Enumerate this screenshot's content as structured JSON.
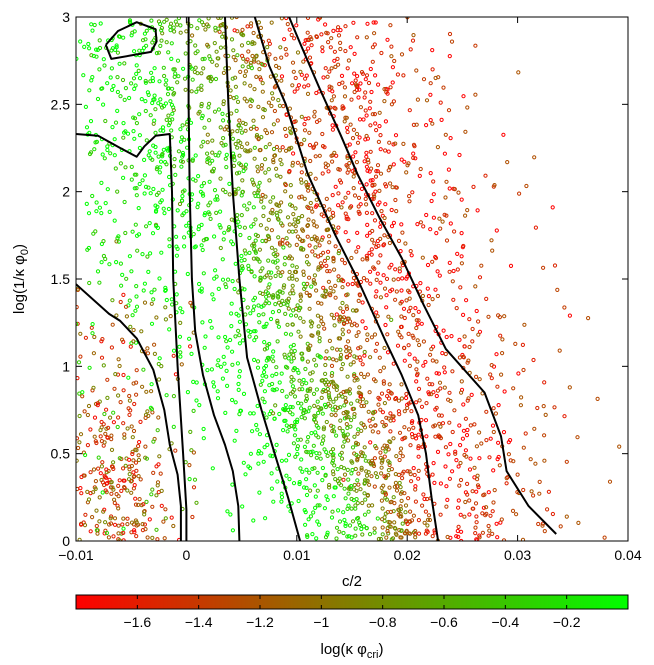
{
  "chart_data": {
    "type": "scatter",
    "title": "",
    "xlabel": "c/2",
    "ylabel_main": "log(1/κ φ",
    "ylabel_sub": "0",
    "ylabel_tail": ")",
    "xlim": [
      -0.01,
      0.04
    ],
    "ylim": [
      0,
      3
    ],
    "x_ticks": [
      -0.01,
      0,
      0.01,
      0.02,
      0.03,
      0.04
    ],
    "x_tick_labels": [
      "−0.01",
      "0",
      "0.01",
      "0.02",
      "0.03",
      "0.04"
    ],
    "y_ticks": [
      0,
      0.5,
      1,
      1.5,
      2,
      2.5,
      3
    ],
    "y_tick_labels": [
      "0",
      "0.5",
      "1",
      "1.5",
      "2",
      "2.5",
      "3"
    ],
    "grid": false,
    "colorbar": {
      "label_main": "log(κ φ",
      "label_sub": "cri",
      "label_tail": ")",
      "range": [
        -1.8,
        0
      ],
      "ticks": [
        -1.6,
        -1.4,
        -1.2,
        -1.0,
        -0.8,
        -0.6,
        -0.4,
        -0.2
      ],
      "tick_labels": [
        "−1.6",
        "−1.4",
        "−1.2",
        "−1",
        "−0.8",
        "−0.6",
        "−0.4",
        "−0.2"
      ],
      "color_low": "#ff0000",
      "color_high": "#00ff00"
    },
    "contours": [
      {
        "points": [
          [
            -0.0073,
            2.84
          ],
          [
            -0.0062,
            2.92
          ],
          [
            -0.0045,
            2.97
          ],
          [
            -0.0028,
            2.93
          ],
          [
            -0.0027,
            2.86
          ],
          [
            -0.0032,
            2.8
          ],
          [
            -0.005,
            2.78
          ],
          [
            -0.0068,
            2.76
          ],
          [
            -0.0073,
            2.84
          ]
        ]
      },
      {
        "points": [
          [
            -0.01,
            2.33
          ],
          [
            -0.008,
            2.32
          ],
          [
            -0.006,
            2.25
          ],
          [
            -0.0045,
            2.2
          ],
          [
            -0.0038,
            2.26
          ],
          [
            -0.0028,
            2.32
          ],
          [
            -0.0015,
            2.33
          ],
          [
            -0.0013,
            2.0
          ],
          [
            -0.0012,
            1.5
          ],
          [
            -0.0008,
            1.0
          ],
          [
            -0.0003,
            0.5
          ],
          [
            0,
            0.18
          ],
          [
            0,
            0
          ]
        ]
      },
      {
        "points": [
          [
            -0.01,
            1.47
          ],
          [
            -0.007,
            1.3
          ],
          [
            -0.006,
            1.26
          ],
          [
            -0.0045,
            1.16
          ],
          [
            -0.003,
            0.98
          ],
          [
            -0.002,
            0.75
          ],
          [
            -0.0015,
            0.55
          ],
          [
            -0.0008,
            0.38
          ],
          [
            -0.0005,
            0.2
          ],
          [
            -0.0005,
            0
          ]
        ]
      },
      {
        "points": [
          [
            0.0002,
            3
          ],
          [
            0.0002,
            2.5
          ],
          [
            0.0003,
            2.0
          ],
          [
            0.0005,
            1.5
          ],
          [
            0.0008,
            1.2
          ],
          [
            0.0015,
            0.95
          ],
          [
            0.0025,
            0.72
          ],
          [
            0.0035,
            0.55
          ],
          [
            0.0042,
            0.4
          ],
          [
            0.0047,
            0.2
          ],
          [
            0.0048,
            0
          ]
        ]
      },
      {
        "points": [
          [
            0.0035,
            3
          ],
          [
            0.0038,
            2.5
          ],
          [
            0.0042,
            2.0
          ],
          [
            0.0048,
            1.5
          ],
          [
            0.0055,
            1.05
          ],
          [
            0.0068,
            0.75
          ],
          [
            0.008,
            0.5
          ],
          [
            0.0092,
            0.25
          ],
          [
            0.0103,
            0
          ]
        ]
      },
      {
        "points": [
          [
            0.0062,
            3
          ],
          [
            0.0075,
            2.72
          ],
          [
            0.009,
            2.5
          ],
          [
            0.011,
            2.1
          ],
          [
            0.0135,
            1.75
          ],
          [
            0.0155,
            1.5
          ],
          [
            0.018,
            1.15
          ],
          [
            0.0195,
            0.95
          ],
          [
            0.021,
            0.72
          ],
          [
            0.0217,
            0.5
          ],
          [
            0.0222,
            0.25
          ],
          [
            0.0228,
            0
          ]
        ]
      },
      {
        "points": [
          [
            0.0093,
            3
          ],
          [
            0.0103,
            2.85
          ],
          [
            0.012,
            2.6
          ],
          [
            0.014,
            2.32
          ],
          [
            0.0155,
            2.1
          ],
          [
            0.0175,
            1.85
          ],
          [
            0.0195,
            1.62
          ],
          [
            0.0215,
            1.35
          ],
          [
            0.0235,
            1.1
          ],
          [
            0.027,
            0.85
          ],
          [
            0.0285,
            0.6
          ],
          [
            0.029,
            0.4
          ],
          [
            0.031,
            0.2
          ],
          [
            0.0335,
            0.04
          ]
        ]
      }
    ],
    "point_radius": 1.6
  }
}
